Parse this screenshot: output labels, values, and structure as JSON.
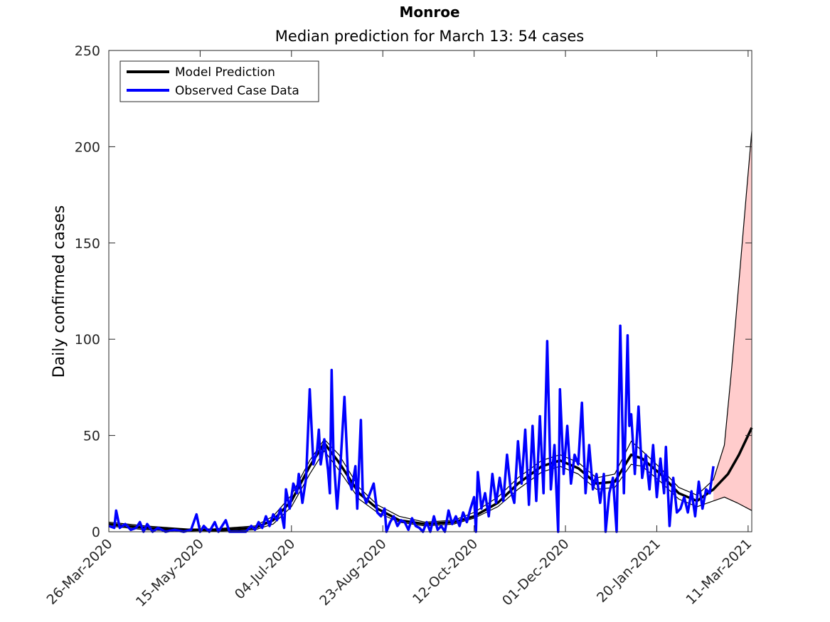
{
  "chart_data": {
    "type": "line",
    "title": "Monroe",
    "subtitle": "Median prediction for March 13: 54 cases",
    "xlabel": "",
    "ylabel": "Daily confirmed cases",
    "x_start_date": "2020-03-26",
    "xlim": [
      "2020-03-26",
      "2021-03-13"
    ],
    "ylim": [
      0,
      250
    ],
    "yticks": [
      0,
      50,
      100,
      150,
      200,
      250
    ],
    "xtick_labels": [
      "26-Mar-2020",
      "15-May-2020",
      "04-Jul-2020",
      "23-Aug-2020",
      "12-Oct-2020",
      "01-Dec-2020",
      "20-Jan-2021",
      "11-Mar-2021"
    ],
    "grid": false,
    "legend_position": "top-left",
    "legend": [
      {
        "label": "Model Prediction",
        "color": "#000000"
      },
      {
        "label": "Observed Case Data",
        "color": "#0000ff"
      }
    ],
    "observed": {
      "name": "Observed Case Data",
      "color": "#0000ff",
      "points": [
        [
          "2020-03-26",
          3
        ],
        [
          "2020-03-29",
          2
        ],
        [
          "2020-03-30",
          11
        ],
        [
          "2020-04-01",
          2
        ],
        [
          "2020-04-04",
          4
        ],
        [
          "2020-04-07",
          1
        ],
        [
          "2020-04-10",
          2
        ],
        [
          "2020-04-12",
          5
        ],
        [
          "2020-04-14",
          0
        ],
        [
          "2020-04-16",
          4
        ],
        [
          "2020-04-19",
          0
        ],
        [
          "2020-04-22",
          2
        ],
        [
          "2020-04-26",
          0
        ],
        [
          "2020-05-01",
          1
        ],
        [
          "2020-05-06",
          0
        ],
        [
          "2020-05-10",
          1
        ],
        [
          "2020-05-13",
          9
        ],
        [
          "2020-05-15",
          0
        ],
        [
          "2020-05-17",
          3
        ],
        [
          "2020-05-20",
          0
        ],
        [
          "2020-05-23",
          5
        ],
        [
          "2020-05-25",
          0
        ],
        [
          "2020-05-29",
          6
        ],
        [
          "2020-05-31",
          0
        ],
        [
          "2020-06-05",
          0
        ],
        [
          "2020-06-09",
          0
        ],
        [
          "2020-06-12",
          3
        ],
        [
          "2020-06-14",
          1
        ],
        [
          "2020-06-16",
          5
        ],
        [
          "2020-06-18",
          2
        ],
        [
          "2020-06-20",
          8
        ],
        [
          "2020-06-22",
          3
        ],
        [
          "2020-06-24",
          9
        ],
        [
          "2020-06-26",
          6
        ],
        [
          "2020-06-28",
          12
        ],
        [
          "2020-06-30",
          2
        ],
        [
          "2020-07-01",
          22
        ],
        [
          "2020-07-03",
          12
        ],
        [
          "2020-07-05",
          25
        ],
        [
          "2020-07-07",
          20
        ],
        [
          "2020-07-08",
          30
        ],
        [
          "2020-07-10",
          15
        ],
        [
          "2020-07-12",
          28
        ],
        [
          "2020-07-14",
          74
        ],
        [
          "2020-07-16",
          35
        ],
        [
          "2020-07-18",
          42
        ],
        [
          "2020-07-19",
          53
        ],
        [
          "2020-07-20",
          35
        ],
        [
          "2020-07-22",
          48
        ],
        [
          "2020-07-24",
          32
        ],
        [
          "2020-07-25",
          20
        ],
        [
          "2020-07-26",
          84
        ],
        [
          "2020-07-27",
          40
        ],
        [
          "2020-07-29",
          12
        ],
        [
          "2020-07-31",
          38
        ],
        [
          "2020-08-02",
          70
        ],
        [
          "2020-08-04",
          28
        ],
        [
          "2020-08-06",
          22
        ],
        [
          "2020-08-08",
          34
        ],
        [
          "2020-08-09",
          12
        ],
        [
          "2020-08-11",
          58
        ],
        [
          "2020-08-12",
          20
        ],
        [
          "2020-08-14",
          15
        ],
        [
          "2020-08-16",
          20
        ],
        [
          "2020-08-18",
          25
        ],
        [
          "2020-08-20",
          10
        ],
        [
          "2020-08-22",
          8
        ],
        [
          "2020-08-24",
          12
        ],
        [
          "2020-08-25",
          0
        ],
        [
          "2020-08-27",
          5
        ],
        [
          "2020-08-29",
          8
        ],
        [
          "2020-08-31",
          3
        ],
        [
          "2020-09-02",
          6
        ],
        [
          "2020-09-04",
          5
        ],
        [
          "2020-09-06",
          1
        ],
        [
          "2020-09-08",
          7
        ],
        [
          "2020-09-10",
          3
        ],
        [
          "2020-09-12",
          2
        ],
        [
          "2020-09-14",
          0
        ],
        [
          "2020-09-16",
          5
        ],
        [
          "2020-09-18",
          0
        ],
        [
          "2020-09-20",
          8
        ],
        [
          "2020-09-22",
          1
        ],
        [
          "2020-09-24",
          3
        ],
        [
          "2020-09-26",
          0
        ],
        [
          "2020-09-28",
          11
        ],
        [
          "2020-09-30",
          4
        ],
        [
          "2020-10-02",
          8
        ],
        [
          "2020-10-04",
          3
        ],
        [
          "2020-10-06",
          10
        ],
        [
          "2020-10-08",
          5
        ],
        [
          "2020-10-10",
          12
        ],
        [
          "2020-10-12",
          18
        ],
        [
          "2020-10-13",
          0
        ],
        [
          "2020-10-14",
          31
        ],
        [
          "2020-10-16",
          12
        ],
        [
          "2020-10-18",
          20
        ],
        [
          "2020-10-20",
          8
        ],
        [
          "2020-10-22",
          30
        ],
        [
          "2020-10-24",
          15
        ],
        [
          "2020-10-26",
          28
        ],
        [
          "2020-10-28",
          16
        ],
        [
          "2020-10-30",
          40
        ],
        [
          "2020-11-01",
          22
        ],
        [
          "2020-11-03",
          15
        ],
        [
          "2020-11-05",
          47
        ],
        [
          "2020-11-07",
          25
        ],
        [
          "2020-11-09",
          53
        ],
        [
          "2020-11-11",
          14
        ],
        [
          "2020-11-13",
          55
        ],
        [
          "2020-11-15",
          16
        ],
        [
          "2020-11-17",
          60
        ],
        [
          "2020-11-19",
          20
        ],
        [
          "2020-11-21",
          99
        ],
        [
          "2020-11-23",
          22
        ],
        [
          "2020-11-25",
          45
        ],
        [
          "2020-11-27",
          0
        ],
        [
          "2020-11-28",
          74
        ],
        [
          "2020-11-30",
          30
        ],
        [
          "2020-12-02",
          55
        ],
        [
          "2020-12-04",
          25
        ],
        [
          "2020-12-06",
          40
        ],
        [
          "2020-12-08",
          35
        ],
        [
          "2020-12-10",
          67
        ],
        [
          "2020-12-12",
          20
        ],
        [
          "2020-12-14",
          45
        ],
        [
          "2020-12-16",
          22
        ],
        [
          "2020-12-18",
          30
        ],
        [
          "2020-12-20",
          15
        ],
        [
          "2020-12-22",
          30
        ],
        [
          "2020-12-23",
          0
        ],
        [
          "2020-12-25",
          20
        ],
        [
          "2020-12-27",
          28
        ],
        [
          "2020-12-29",
          0
        ],
        [
          "2020-12-31",
          107
        ],
        [
          "2021-01-02",
          20
        ],
        [
          "2021-01-04",
          102
        ],
        [
          "2021-01-05",
          55
        ],
        [
          "2021-01-06",
          61
        ],
        [
          "2021-01-08",
          30
        ],
        [
          "2021-01-10",
          65
        ],
        [
          "2021-01-12",
          28
        ],
        [
          "2021-01-14",
          40
        ],
        [
          "2021-01-16",
          22
        ],
        [
          "2021-01-18",
          45
        ],
        [
          "2021-01-20",
          18
        ],
        [
          "2021-01-22",
          38
        ],
        [
          "2021-01-24",
          20
        ],
        [
          "2021-01-25",
          44
        ],
        [
          "2021-01-27",
          3
        ],
        [
          "2021-01-29",
          28
        ],
        [
          "2021-01-31",
          10
        ],
        [
          "2021-02-02",
          12
        ],
        [
          "2021-02-04",
          18
        ],
        [
          "2021-02-06",
          10
        ],
        [
          "2021-02-08",
          21
        ],
        [
          "2021-02-10",
          8
        ],
        [
          "2021-02-12",
          26
        ],
        [
          "2021-02-14",
          12
        ],
        [
          "2021-02-16",
          22
        ],
        [
          "2021-02-18",
          20
        ],
        [
          "2021-02-20",
          34
        ]
      ]
    },
    "model_median": {
      "name": "Model Prediction",
      "color": "#000000",
      "points": [
        [
          "2020-03-26",
          4
        ],
        [
          "2020-04-15",
          2
        ],
        [
          "2020-05-05",
          1
        ],
        [
          "2020-05-25",
          1
        ],
        [
          "2020-06-14",
          2
        ],
        [
          "2020-06-24",
          6
        ],
        [
          "2020-07-04",
          16
        ],
        [
          "2020-07-14",
          34
        ],
        [
          "2020-07-22",
          46
        ],
        [
          "2020-07-30",
          36
        ],
        [
          "2020-08-10",
          20
        ],
        [
          "2020-08-20",
          12
        ],
        [
          "2020-09-01",
          6
        ],
        [
          "2020-09-15",
          4
        ],
        [
          "2020-10-01",
          5
        ],
        [
          "2020-10-12",
          8
        ],
        [
          "2020-10-25",
          15
        ],
        [
          "2020-11-05",
          25
        ],
        [
          "2020-11-18",
          34
        ],
        [
          "2020-11-28",
          37
        ],
        [
          "2020-12-08",
          33
        ],
        [
          "2020-12-18",
          25
        ],
        [
          "2020-12-28",
          26
        ],
        [
          "2021-01-06",
          40
        ],
        [
          "2021-01-12",
          38
        ],
        [
          "2021-01-22",
          30
        ],
        [
          "2021-02-01",
          20
        ],
        [
          "2021-02-11",
          16
        ],
        [
          "2021-02-20",
          22
        ],
        [
          "2021-02-28",
          30
        ],
        [
          "2021-03-06",
          40
        ],
        [
          "2021-03-13",
          54
        ]
      ]
    },
    "model_bounds": [
      {
        "name": "upper",
        "points": [
          [
            "2020-03-26",
            5
          ],
          [
            "2020-04-15",
            3
          ],
          [
            "2020-05-15",
            1
          ],
          [
            "2020-06-14",
            3
          ],
          [
            "2020-06-24",
            8
          ],
          [
            "2020-07-04",
            19
          ],
          [
            "2020-07-14",
            37
          ],
          [
            "2020-07-22",
            48
          ],
          [
            "2020-07-30",
            40
          ],
          [
            "2020-08-10",
            23
          ],
          [
            "2020-08-20",
            14
          ],
          [
            "2020-09-01",
            8
          ],
          [
            "2020-09-15",
            5
          ],
          [
            "2020-10-01",
            6
          ],
          [
            "2020-10-12",
            10
          ],
          [
            "2020-10-25",
            18
          ],
          [
            "2020-11-05",
            28
          ],
          [
            "2020-11-18",
            37
          ],
          [
            "2020-11-28",
            40
          ],
          [
            "2020-12-08",
            36
          ],
          [
            "2020-12-18",
            28
          ],
          [
            "2020-12-28",
            30
          ],
          [
            "2021-01-06",
            47
          ],
          [
            "2021-01-12",
            42
          ],
          [
            "2021-01-22",
            33
          ],
          [
            "2021-02-01",
            23
          ],
          [
            "2021-02-11",
            19
          ],
          [
            "2021-02-20",
            27
          ],
          [
            "2021-02-26",
            45
          ],
          [
            "2021-03-02",
            85
          ],
          [
            "2021-03-06",
            130
          ],
          [
            "2021-03-10",
            175
          ],
          [
            "2021-03-13",
            208
          ]
        ]
      },
      {
        "name": "lower",
        "points": [
          [
            "2020-03-26",
            3
          ],
          [
            "2020-04-15",
            1
          ],
          [
            "2020-05-15",
            0
          ],
          [
            "2020-06-14",
            1
          ],
          [
            "2020-06-24",
            4
          ],
          [
            "2020-07-04",
            13
          ],
          [
            "2020-07-14",
            30
          ],
          [
            "2020-07-22",
            42
          ],
          [
            "2020-07-30",
            32
          ],
          [
            "2020-08-10",
            17
          ],
          [
            "2020-08-20",
            10
          ],
          [
            "2020-09-01",
            5
          ],
          [
            "2020-09-15",
            3
          ],
          [
            "2020-10-01",
            4
          ],
          [
            "2020-10-12",
            7
          ],
          [
            "2020-10-25",
            13
          ],
          [
            "2020-11-05",
            22
          ],
          [
            "2020-11-18",
            31
          ],
          [
            "2020-11-28",
            34
          ],
          [
            "2020-12-08",
            30
          ],
          [
            "2020-12-18",
            22
          ],
          [
            "2020-12-28",
            23
          ],
          [
            "2021-01-06",
            35
          ],
          [
            "2021-01-12",
            34
          ],
          [
            "2021-01-22",
            26
          ],
          [
            "2021-02-01",
            17
          ],
          [
            "2021-02-11",
            13
          ],
          [
            "2021-02-20",
            16
          ],
          [
            "2021-02-26",
            18
          ],
          [
            "2021-03-05",
            15
          ],
          [
            "2021-03-13",
            11
          ]
        ]
      }
    ],
    "forecast_band": {
      "color": "#ffcccc",
      "start": "2021-02-20",
      "end": "2021-03-13"
    }
  }
}
